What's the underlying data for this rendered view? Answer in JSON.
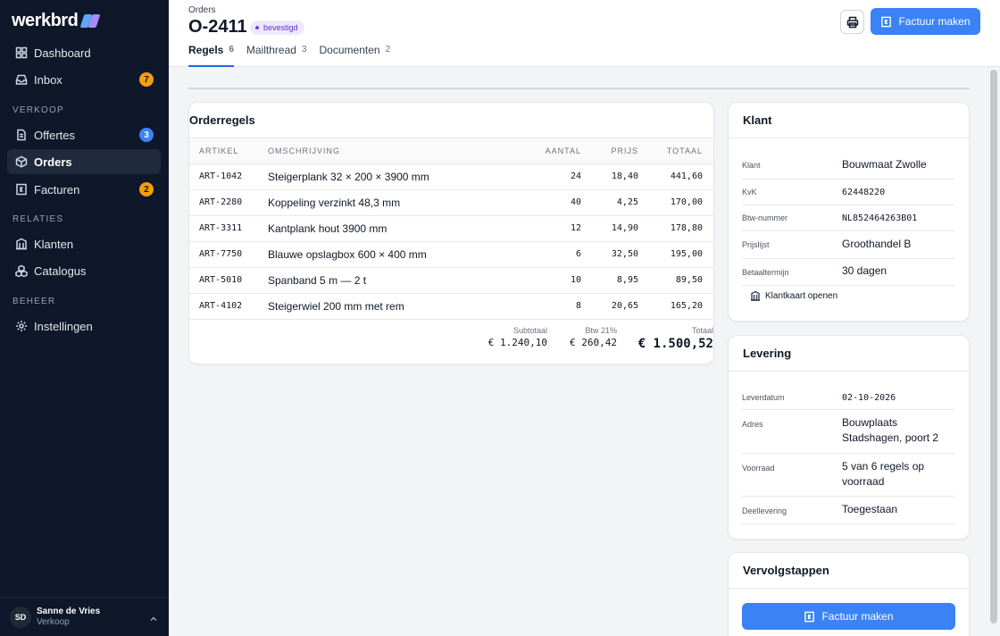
{
  "app": {
    "logo": "werkbrd"
  },
  "sidebar": {
    "items": [
      {
        "label": "Dashboard",
        "icon": "grid-icon"
      },
      {
        "label": "Inbox",
        "icon": "inbox-icon",
        "badge": "7"
      },
      {
        "label": "Offertes",
        "icon": "document-icon",
        "badge": "3"
      },
      {
        "label": "Orders",
        "icon": "box-icon"
      },
      {
        "label": "Facturen",
        "icon": "invoice-icon",
        "badge": "2"
      },
      {
        "label": "Klanten",
        "icon": "building-icon"
      },
      {
        "label": "Catalogus",
        "icon": "cubes-icon"
      },
      {
        "label": "Instellingen",
        "icon": "gear-icon"
      }
    ],
    "sections": {
      "verkoop": "VERKOOP",
      "relaties": "RELATIES",
      "beheer": "BEHEER"
    },
    "user": {
      "initials": "SD",
      "name": "Sanne de Vries",
      "role": "Verkoop"
    }
  },
  "header": {
    "breadcrumb": "Orders",
    "title": "O-2411",
    "status": "bevestigd",
    "tabs": [
      {
        "label": "Regels",
        "count": "6"
      },
      {
        "label": "Mailthread",
        "count": "3"
      },
      {
        "label": "Documenten",
        "count": "2"
      }
    ],
    "primary_label": "Factuur maken"
  },
  "orderregels": {
    "title": "Orderregels",
    "columns": {
      "artikel": "ARTIKEL",
      "omschrijving": "OMSCHRIJVING",
      "aantal": "AANTAL",
      "prijs": "PRIJS",
      "totaal": "TOTAAL"
    },
    "rows": [
      {
        "artikel": "ART-1042",
        "omschrijving": "Steigerplank 32 × 200 × 3900 mm",
        "aantal": "24",
        "prijs": "18,40",
        "totaal": "441,60"
      },
      {
        "artikel": "ART-2280",
        "omschrijving": "Koppeling verzinkt 48,3 mm",
        "aantal": "40",
        "prijs": "4,25",
        "totaal": "170,00"
      },
      {
        "artikel": "ART-3311",
        "omschrijving": "Kantplank hout 3900 mm",
        "aantal": "12",
        "prijs": "14,90",
        "totaal": "178,80"
      },
      {
        "artikel": "ART-7750",
        "omschrijving": "Blauwe opslagbox 600 × 400 mm",
        "aantal": "6",
        "prijs": "32,50",
        "totaal": "195,00"
      },
      {
        "artikel": "ART-5010",
        "omschrijving": "Spanband 5 m — 2 t",
        "aantal": "10",
        "prijs": "8,95",
        "totaal": "89,50"
      },
      {
        "artikel": "ART-4102",
        "omschrijving": "Steigerwiel 200 mm met rem",
        "aantal": "8",
        "prijs": "20,65",
        "totaal": "165,20"
      }
    ],
    "totals": {
      "subtotaal_label": "Subtotaal",
      "subtotaal": "€ 1.240,10",
      "btw_label": "Btw 21%",
      "btw": "€ 260,42",
      "totaal_label": "Totaal",
      "totaal": "€ 1.500,52"
    }
  },
  "klant": {
    "title": "Klant",
    "fields": [
      {
        "key": "Klant",
        "value": "Bouwmaat Zwolle"
      },
      {
        "key": "KvK",
        "value": "62448220"
      },
      {
        "key": "Btw-nummer",
        "value": "NL852464263B01"
      },
      {
        "key": "Prijslijst",
        "value": "Groothandel B"
      },
      {
        "key": "Betaaltermijn",
        "value": "30 dagen"
      }
    ],
    "link_label": "Klantkaart openen"
  },
  "levering": {
    "title": "Levering",
    "fields": [
      {
        "key": "Leverdatum",
        "value": "02-10-2026"
      },
      {
        "key": "Adres",
        "value": "Bouwplaats Stadshagen, poort 2"
      },
      {
        "key": "Voorraad",
        "value": "5 van 6 regels op voorraad"
      },
      {
        "key": "Deellevering",
        "value": "Toegestaan"
      }
    ]
  },
  "vervolgstappen": {
    "title": "Vervolgstappen",
    "button_label": "Factuur maken"
  },
  "colors": {
    "accent": "#3b82f6",
    "sidebar": "#0f172a",
    "status_bg": "#ede9fe",
    "status_fg": "#6d28d9"
  }
}
